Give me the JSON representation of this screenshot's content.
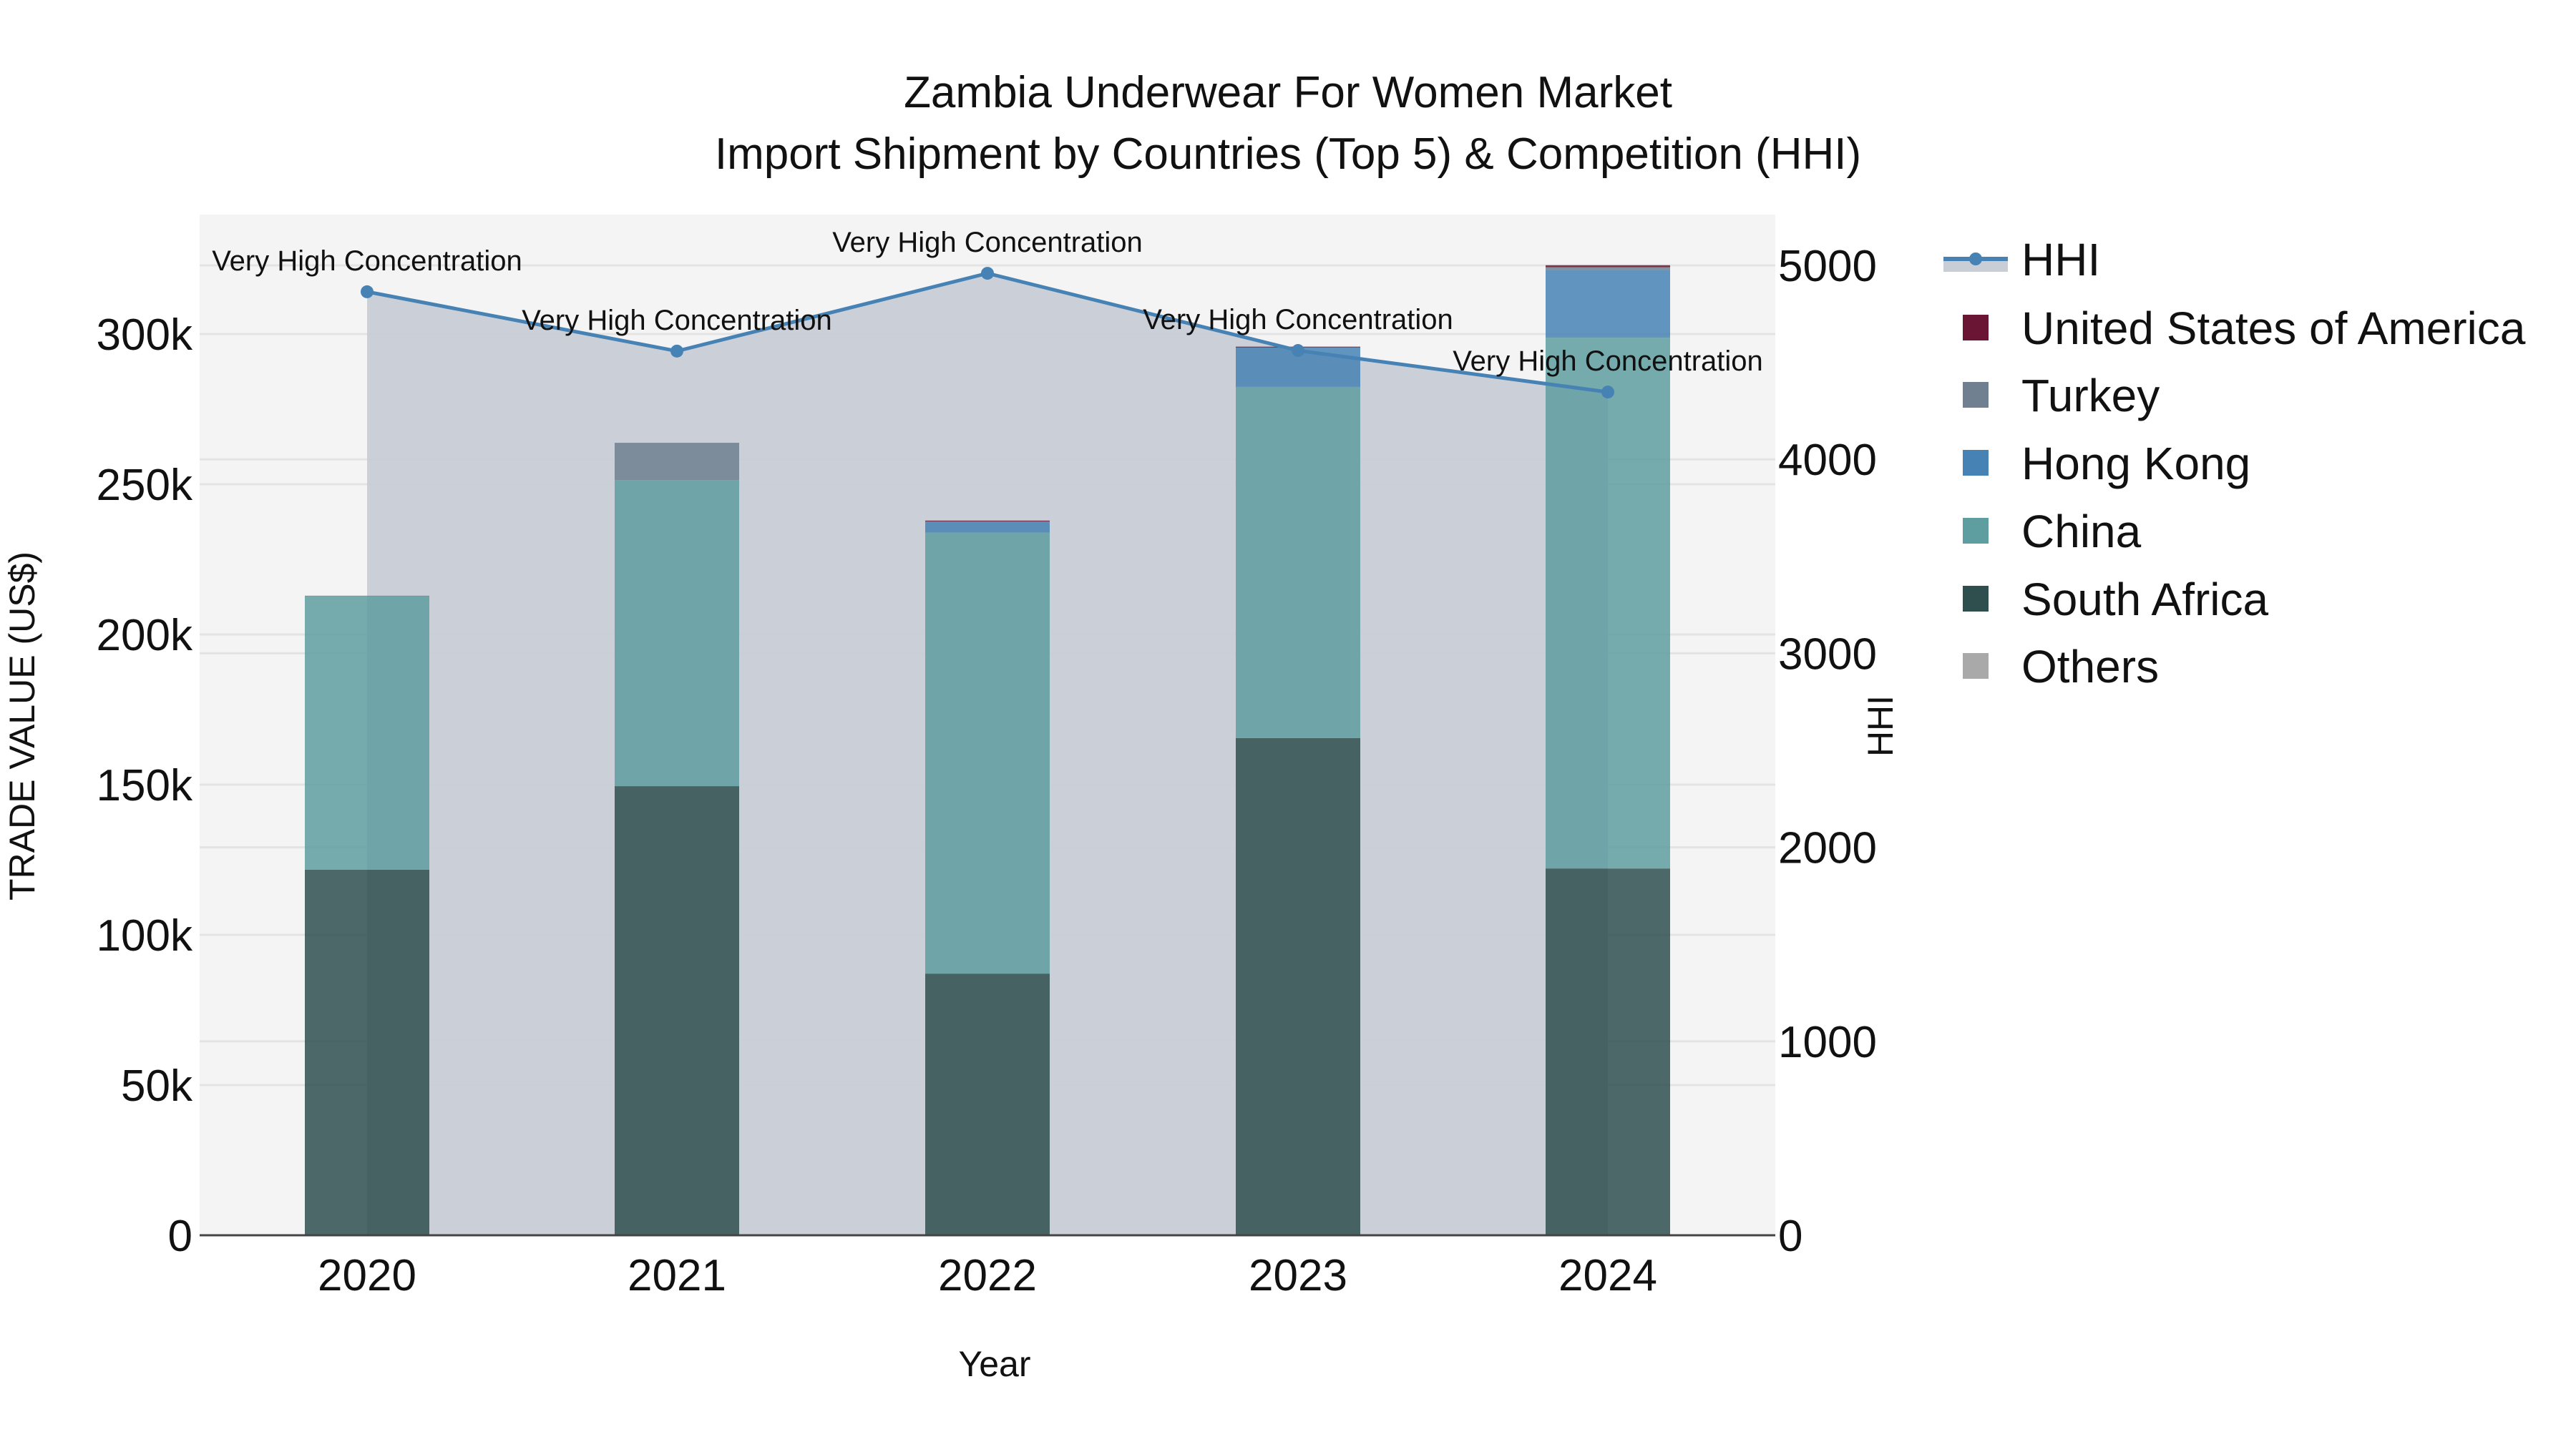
{
  "title": {
    "line1": "Zambia Underwear For Women Market",
    "line2": "Import Shipment by Countries (Top 5) & Competition (HHI)"
  },
  "axes": {
    "x_title": "Year",
    "y_left_title": "TRADE VALUE (US$)",
    "y_right_title": "HHI",
    "y_left_ticks": [
      "0",
      "50k",
      "100k",
      "150k",
      "200k",
      "250k",
      "300k"
    ],
    "y_left_tick_values": [
      0,
      50000,
      100000,
      150000,
      200000,
      250000,
      300000
    ],
    "y_right_ticks": [
      "0",
      "1000",
      "2000",
      "3000",
      "4000",
      "5000"
    ],
    "y_right_tick_values": [
      0,
      1000,
      2000,
      3000,
      4000,
      5000
    ],
    "x_ticks": [
      "2020",
      "2021",
      "2022",
      "2023",
      "2024"
    ]
  },
  "legend": {
    "items": [
      {
        "label": "HHI",
        "type": "line",
        "color": "#4682b4",
        "fill": "#c8cdd6"
      },
      {
        "label": "United States of America",
        "type": "bar",
        "color": "#6b1535"
      },
      {
        "label": "Turkey",
        "type": "bar",
        "color": "#708090"
      },
      {
        "label": "Hong Kong",
        "type": "bar",
        "color": "#4682b4"
      },
      {
        "label": "China",
        "type": "bar",
        "color": "#5f9ea0"
      },
      {
        "label": "South Africa",
        "type": "bar",
        "color": "#2f4f4f"
      },
      {
        "label": "Others",
        "type": "bar",
        "color": "#a9a9a9"
      }
    ]
  },
  "colors": {
    "plot_bg": "#f4f4f4",
    "grid": "#e3e3e3",
    "hhi_line": "#4682b4",
    "hhi_fill": "#c8cdd6",
    "axis_line": "#444444"
  },
  "chart_data": {
    "type": "bar",
    "stacked": true,
    "title": "Zambia Underwear For Women Market — Import Shipment by Countries (Top 5) & Competition (HHI)",
    "xlabel": "Year",
    "ylabel": "TRADE VALUE (US$)",
    "y2label": "HHI",
    "categories": [
      "2020",
      "2021",
      "2022",
      "2023",
      "2024"
    ],
    "ylim": [
      0,
      340000
    ],
    "y2lim": [
      0,
      5260
    ],
    "grid": true,
    "legend_position": "right",
    "series": [
      {
        "name": "South Africa",
        "color": "#2f4f4f",
        "values": [
          121700,
          149500,
          87100,
          165500,
          122100
        ]
      },
      {
        "name": "China",
        "color": "#5f9ea0",
        "values": [
          91000,
          101900,
          146800,
          116900,
          176700
        ]
      },
      {
        "name": "Hong Kong",
        "color": "#4682b4",
        "values": [
          0,
          0,
          3700,
          13100,
          22400
        ]
      },
      {
        "name": "Turkey",
        "color": "#708090",
        "values": [
          200,
          12400,
          0,
          0,
          1000
        ]
      },
      {
        "name": "United States of America",
        "color": "#6b1535",
        "values": [
          0,
          0,
          300,
          300,
          700
        ]
      },
      {
        "name": "Others",
        "color": "#a9a9a9",
        "values": [
          0,
          0,
          0,
          0,
          0
        ]
      }
    ],
    "line_series": {
      "name": "HHI",
      "axis": "right",
      "type": "area-line",
      "values": [
        4864,
        4558,
        4959,
        4561,
        4347
      ],
      "annotations": [
        "Very High Concentration",
        "Very High Concentration",
        "Very High Concentration",
        "Very High Concentration",
        "Very High Concentration"
      ]
    }
  }
}
